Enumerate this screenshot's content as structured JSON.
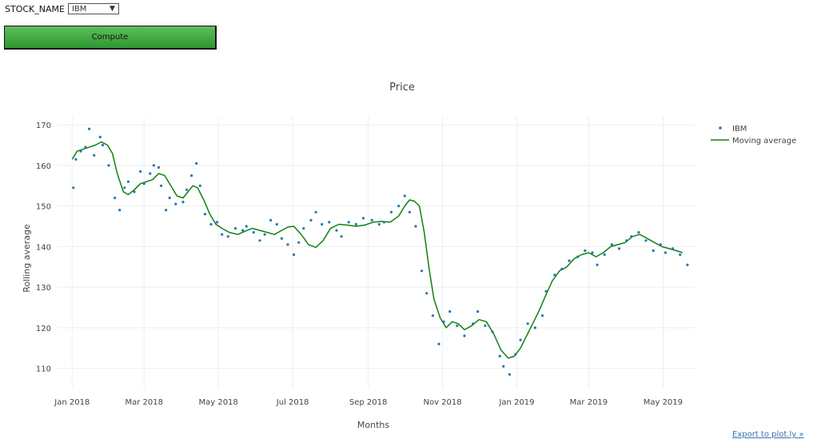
{
  "controls": {
    "stock_label": "STOCK_NAME",
    "stock_value": "IBM",
    "compute_label": "Compute"
  },
  "export_link": "Export to plot.ly »",
  "colors": {
    "points": "#1f77b4",
    "line": "#108010",
    "button": "#3fa83f"
  },
  "chart_data": {
    "type": "scatter",
    "title": "Price",
    "xlabel": "Months",
    "ylabel": "Rolling average",
    "ylim": [
      105,
      172
    ],
    "xlim": [
      "2017-12-20",
      "2019-05-27"
    ],
    "yticks": [
      110,
      120,
      130,
      140,
      150,
      160,
      170
    ],
    "xticks": [
      "2018-01-01",
      "2018-03-01",
      "2018-05-01",
      "2018-07-01",
      "2018-09-01",
      "2018-11-01",
      "2019-01-01",
      "2019-03-01",
      "2019-05-01"
    ],
    "xtick_labels": [
      "Jan 2018",
      "Mar 2018",
      "May 2018",
      "Jul 2018",
      "Sep 2018",
      "Nov 2018",
      "Jan 2019",
      "Mar 2019",
      "May 2019"
    ],
    "grid": true,
    "legend": "top-right",
    "series": [
      {
        "name": "IBM",
        "mode": "markers",
        "x": [
          "2018-01-02",
          "2018-01-04",
          "2018-01-08",
          "2018-01-12",
          "2018-01-15",
          "2018-01-19",
          "2018-01-24",
          "2018-01-26",
          "2018-01-31",
          "2018-02-05",
          "2018-02-09",
          "2018-02-13",
          "2018-02-16",
          "2018-02-21",
          "2018-02-26",
          "2018-03-01",
          "2018-03-06",
          "2018-03-09",
          "2018-03-13",
          "2018-03-15",
          "2018-03-19",
          "2018-03-22",
          "2018-03-27",
          "2018-04-02",
          "2018-04-05",
          "2018-04-09",
          "2018-04-13",
          "2018-04-16",
          "2018-04-20",
          "2018-04-25",
          "2018-04-30",
          "2018-05-04",
          "2018-05-09",
          "2018-05-15",
          "2018-05-21",
          "2018-05-24",
          "2018-05-30",
          "2018-06-04",
          "2018-06-08",
          "2018-06-13",
          "2018-06-18",
          "2018-06-22",
          "2018-06-27",
          "2018-07-02",
          "2018-07-06",
          "2018-07-10",
          "2018-07-16",
          "2018-07-20",
          "2018-07-25",
          "2018-07-31",
          "2018-08-06",
          "2018-08-10",
          "2018-08-16",
          "2018-08-22",
          "2018-08-28",
          "2018-09-04",
          "2018-09-10",
          "2018-09-14",
          "2018-09-20",
          "2018-09-26",
          "2018-10-01",
          "2018-10-05",
          "2018-10-10",
          "2018-10-15",
          "2018-10-19",
          "2018-10-24",
          "2018-10-29",
          "2018-11-02",
          "2018-11-07",
          "2018-11-13",
          "2018-11-19",
          "2018-11-26",
          "2018-11-30",
          "2018-12-06",
          "2018-12-12",
          "2018-12-18",
          "2018-12-21",
          "2018-12-26",
          "2018-12-31",
          "2019-01-04",
          "2019-01-10",
          "2019-01-16",
          "2019-01-22",
          "2019-01-25",
          "2019-02-01",
          "2019-02-07",
          "2019-02-13",
          "2019-02-20",
          "2019-02-26",
          "2019-03-04",
          "2019-03-08",
          "2019-03-14",
          "2019-03-20",
          "2019-03-26",
          "2019-04-01",
          "2019-04-05",
          "2019-04-11",
          "2019-04-17",
          "2019-04-23",
          "2019-04-29",
          "2019-05-03",
          "2019-05-09",
          "2019-05-15",
          "2019-05-21"
        ],
        "y": [
          154.5,
          161.5,
          163.5,
          164.5,
          169.0,
          162.5,
          167.0,
          165.0,
          160.0,
          152.0,
          149.0,
          154.5,
          156.0,
          153.5,
          158.5,
          155.5,
          158.0,
          160.0,
          159.5,
          155.0,
          149.0,
          152.0,
          150.5,
          151.0,
          154.0,
          157.5,
          160.5,
          155.0,
          148.0,
          145.5,
          146.0,
          143.0,
          142.5,
          144.5,
          144.0,
          145.0,
          143.5,
          141.5,
          143.0,
          146.5,
          145.5,
          142.0,
          140.5,
          138.0,
          141.0,
          144.5,
          146.5,
          148.5,
          145.5,
          146.0,
          144.0,
          142.5,
          146.0,
          145.5,
          147.0,
          146.5,
          145.5,
          146.0,
          148.5,
          150.0,
          152.5,
          148.5,
          145.0,
          134.0,
          128.5,
          123.0,
          116.0,
          121.5,
          124.0,
          120.5,
          118.0,
          121.0,
          124.0,
          120.5,
          119.0,
          113.0,
          110.5,
          108.5,
          113.5,
          117.0,
          121.0,
          120.0,
          123.0,
          129.0,
          133.0,
          134.5,
          136.5,
          137.5,
          139.0,
          138.5,
          135.5,
          138.0,
          140.5,
          139.5,
          141.5,
          142.5,
          143.5,
          141.5,
          139.0,
          140.5,
          138.5,
          139.5,
          138.0,
          135.5
        ]
      },
      {
        "name": "Moving average",
        "mode": "lines",
        "x": [
          "2018-01-01",
          "2018-01-05",
          "2018-01-10",
          "2018-01-15",
          "2018-01-20",
          "2018-01-25",
          "2018-01-30",
          "2018-02-03",
          "2018-02-07",
          "2018-02-12",
          "2018-02-16",
          "2018-02-21",
          "2018-02-26",
          "2018-03-03",
          "2018-03-08",
          "2018-03-13",
          "2018-03-18",
          "2018-03-23",
          "2018-03-28",
          "2018-04-02",
          "2018-04-06",
          "2018-04-10",
          "2018-04-14",
          "2018-04-19",
          "2018-04-24",
          "2018-04-29",
          "2018-05-04",
          "2018-05-10",
          "2018-05-17",
          "2018-05-23",
          "2018-05-29",
          "2018-06-04",
          "2018-06-10",
          "2018-06-16",
          "2018-06-22",
          "2018-06-27",
          "2018-07-02",
          "2018-07-08",
          "2018-07-14",
          "2018-07-20",
          "2018-07-26",
          "2018-08-01",
          "2018-08-08",
          "2018-08-15",
          "2018-08-22",
          "2018-08-29",
          "2018-09-05",
          "2018-09-12",
          "2018-09-19",
          "2018-09-26",
          "2018-10-01",
          "2018-10-05",
          "2018-10-09",
          "2018-10-13",
          "2018-10-17",
          "2018-10-21",
          "2018-10-25",
          "2018-10-30",
          "2018-11-04",
          "2018-11-09",
          "2018-11-14",
          "2018-11-19",
          "2018-11-25",
          "2018-12-01",
          "2018-12-07",
          "2018-12-13",
          "2018-12-19",
          "2018-12-25",
          "2018-12-30",
          "2019-01-04",
          "2019-01-09",
          "2019-01-14",
          "2019-01-19",
          "2019-01-24",
          "2019-01-30",
          "2019-02-05",
          "2019-02-11",
          "2019-02-17",
          "2019-02-23",
          "2019-03-01",
          "2019-03-07",
          "2019-03-13",
          "2019-03-19",
          "2019-03-25",
          "2019-03-31",
          "2019-04-06",
          "2019-04-12",
          "2019-04-18",
          "2019-04-24",
          "2019-04-30",
          "2019-05-06",
          "2019-05-12",
          "2019-05-17"
        ],
        "y": [
          161.5,
          163.5,
          164.0,
          164.5,
          165.0,
          165.8,
          165.0,
          163.0,
          158.0,
          153.5,
          152.8,
          154.0,
          155.5,
          156.0,
          156.5,
          158.0,
          157.5,
          155.0,
          152.5,
          152.0,
          153.5,
          155.0,
          154.5,
          151.5,
          148.0,
          145.5,
          144.5,
          143.5,
          143.0,
          143.8,
          144.5,
          144.0,
          143.5,
          143.0,
          144.0,
          144.8,
          145.0,
          143.0,
          140.5,
          139.8,
          141.5,
          144.5,
          145.5,
          145.3,
          145.0,
          145.3,
          146.0,
          146.2,
          146.0,
          147.5,
          150.0,
          151.5,
          151.2,
          150.0,
          143.5,
          134.5,
          127.0,
          122.5,
          120.0,
          121.5,
          121.0,
          119.5,
          120.5,
          122.0,
          121.5,
          118.5,
          114.5,
          112.5,
          113.0,
          115.0,
          118.0,
          121.0,
          124.0,
          127.5,
          131.5,
          134.0,
          135.0,
          137.0,
          138.0,
          138.5,
          137.5,
          138.5,
          140.0,
          140.5,
          141.0,
          142.5,
          143.0,
          142.0,
          141.0,
          140.0,
          139.5,
          139.0,
          138.5
        ]
      }
    ]
  }
}
